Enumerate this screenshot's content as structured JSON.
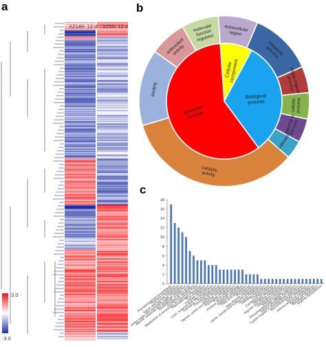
{
  "panels": {
    "a": {
      "label": "a",
      "columns": [
        "XZ149- 12 d",
        "XZ50- 12 d"
      ],
      "colorbar": {
        "max_label": "3.0",
        "min_label": "-3.0",
        "high_color": "#e8161a",
        "mid_color": "#ffffff",
        "low_color": "#1d2fa3"
      }
    },
    "b": {
      "label": "b",
      "inner": [
        {
          "label": "Cellular component",
          "color": "#ffff00",
          "value": 0.9
        },
        {
          "label": "Biological process",
          "color": "#1aa3ee",
          "value": 3.2
        },
        {
          "label": "Molecular function",
          "color": "#ff0000",
          "value": 5.9
        }
      ],
      "outer": [
        {
          "label": "extracellular region",
          "color": "#b9a9cf",
          "value": 0.75
        },
        {
          "label": "metabolic process",
          "color": "#3b66a4",
          "value": 1.2
        },
        {
          "label": "single-organism process",
          "color": "#b13c3c",
          "value": 0.5
        },
        {
          "label": "cellular process",
          "color": "#86b34b",
          "value": 0.5
        },
        {
          "label": "response to stimulus",
          "color": "#6d4a8f",
          "value": 0.45
        },
        {
          "label": "localization",
          "color": "#3aa3c8",
          "value": 0.35
        },
        {
          "label": "catalytic activity",
          "color": "#d9823c",
          "value": 3.4
        },
        {
          "label": "binding",
          "color": "#9bb3dc",
          "value": 1.45
        },
        {
          "label": "antioxidant activity",
          "color": "#d9999a",
          "value": 0.7
        },
        {
          "label": "molecular function regulator",
          "color": "#c5d9a0",
          "value": 0.7
        }
      ]
    },
    "c": {
      "label": "c",
      "chart_data": {
        "type": "bar",
        "ylim": [
          0,
          18
        ],
        "yticks": [
          0,
          2,
          4,
          6,
          8,
          10,
          12,
          14,
          16,
          18
        ],
        "categories": [
          "Phenylpropanoid biosynthesis",
          "Thiamine metabolism",
          "Starch and sucrose metabolism",
          "Amino sugar and nucleotide sugar metabolism",
          "Alanine, aspartate and glutamate metabolism",
          "Biosynthesis of amino acids",
          "Glutathione metabolism",
          "Metabolism of xenobiotics by cytochrome P450",
          "Plant-pathogen interaction",
          "Cell metabolism",
          "Pyruvate metabolism",
          "Cutin, suberine and wax biosynthesis",
          "Glycolysis / Gluconeogenesis",
          "Flavonoid biosynthesis",
          "Carbon metabolism",
          "Glycine, serine and threonine metabolism",
          "Tryptophan metabolism",
          "Purine metabolism",
          "Pentose phosphate pathway",
          "Galactose metabolism",
          "Fatty acid degradation",
          "Peroxisome",
          "beta-Alanine metabolism",
          "Valine, leucine and isoleucine degradation",
          "Tyrosine metabolism",
          "Histidine metabolism",
          "Photosynthesis",
          "Carotenoid biosynthesis",
          "Nitrogen metabolism",
          "Arginine and proline metabolism",
          "Glycerolipid metabolism",
          "Stilbenoid biosynthesis",
          "Phosphatidylinositol signaling system",
          "Inositol phosphate metabolism",
          "Carbon fixation in photosynthetic organisms",
          "Brassinosteroid biosynthesis",
          "Sulfur metabolism",
          "Selenocompound metabolism",
          "Tyrosine biosynthesis",
          "Riboflavin metabolism",
          "Arginine biosynthesis"
        ],
        "values": [
          17,
          13,
          12,
          11,
          10,
          7,
          6,
          5,
          5,
          5,
          4,
          4,
          4,
          3,
          3,
          3,
          3,
          3,
          3,
          3,
          2,
          2,
          2,
          2,
          1,
          1,
          1,
          1,
          1,
          1,
          1,
          1,
          1,
          1,
          1,
          1,
          1,
          1,
          1,
          1,
          1
        ],
        "bar_color": "#4a74b5"
      }
    }
  }
}
